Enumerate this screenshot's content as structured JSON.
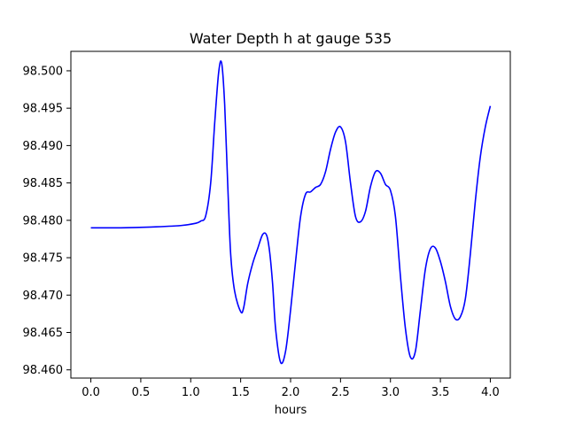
{
  "chart_data": {
    "type": "line",
    "title": "Water Depth h at gauge 535",
    "xlabel": "hours",
    "ylabel": "",
    "xlim": [
      -0.2,
      4.2
    ],
    "ylim": [
      98.4589,
      98.5026
    ],
    "grid": false,
    "legend": "none",
    "x_ticks": [
      {
        "value": 0.0,
        "label": "0.0"
      },
      {
        "value": 0.5,
        "label": "0.5"
      },
      {
        "value": 1.0,
        "label": "1.0"
      },
      {
        "value": 1.5,
        "label": "1.5"
      },
      {
        "value": 2.0,
        "label": "2.0"
      },
      {
        "value": 2.5,
        "label": "2.5"
      },
      {
        "value": 3.0,
        "label": "3.0"
      },
      {
        "value": 3.5,
        "label": "3.5"
      },
      {
        "value": 4.0,
        "label": "4.0"
      }
    ],
    "y_ticks": [
      {
        "value": 98.46,
        "label": "98.460"
      },
      {
        "value": 98.465,
        "label": "98.465"
      },
      {
        "value": 98.47,
        "label": "98.470"
      },
      {
        "value": 98.475,
        "label": "98.475"
      },
      {
        "value": 98.48,
        "label": "98.480"
      },
      {
        "value": 98.485,
        "label": "98.485"
      },
      {
        "value": 98.49,
        "label": "98.490"
      },
      {
        "value": 98.495,
        "label": "98.495"
      },
      {
        "value": 98.5,
        "label": "98.500"
      }
    ],
    "series": [
      {
        "color": "#0000ff",
        "x": [
          0.0,
          0.3,
          0.6,
          0.9,
          1.05,
          1.1,
          1.15,
          1.2,
          1.24,
          1.28,
          1.31,
          1.34,
          1.37,
          1.4,
          1.44,
          1.5,
          1.53,
          1.57,
          1.62,
          1.67,
          1.72,
          1.76,
          1.79,
          1.82,
          1.85,
          1.9,
          1.95,
          2.0,
          2.05,
          2.1,
          2.15,
          2.2,
          2.25,
          2.3,
          2.35,
          2.4,
          2.45,
          2.5,
          2.55,
          2.6,
          2.65,
          2.7,
          2.75,
          2.8,
          2.85,
          2.9,
          2.95,
          3.0,
          3.05,
          3.1,
          3.15,
          3.2,
          3.25,
          3.3,
          3.35,
          3.4,
          3.45,
          3.5,
          3.55,
          3.6,
          3.65,
          3.7,
          3.75,
          3.8,
          3.85,
          3.9,
          3.95,
          4.0
        ],
        "y": [
          98.479,
          98.479,
          98.4791,
          98.4793,
          98.4796,
          98.4799,
          98.4806,
          98.485,
          98.493,
          98.4998,
          98.501,
          98.4955,
          98.485,
          98.4755,
          98.4705,
          98.4678,
          98.4683,
          98.4715,
          98.4742,
          98.4762,
          98.4781,
          98.478,
          98.4758,
          98.4715,
          98.4655,
          98.461,
          98.4625,
          98.468,
          98.4745,
          98.4805,
          98.4835,
          98.4838,
          98.4844,
          98.4848,
          98.4865,
          98.4895,
          98.4918,
          98.4925,
          98.4905,
          98.485,
          98.4805,
          98.4798,
          98.4812,
          98.4845,
          98.4865,
          98.4863,
          98.4848,
          98.484,
          98.4805,
          98.4725,
          98.4655,
          98.4617,
          98.4625,
          98.468,
          98.4735,
          98.4762,
          98.4763,
          98.4745,
          98.4718,
          98.4685,
          98.4668,
          98.4671,
          98.4695,
          98.4755,
          98.4826,
          98.4885,
          98.4925,
          98.4953
        ]
      }
    ]
  }
}
